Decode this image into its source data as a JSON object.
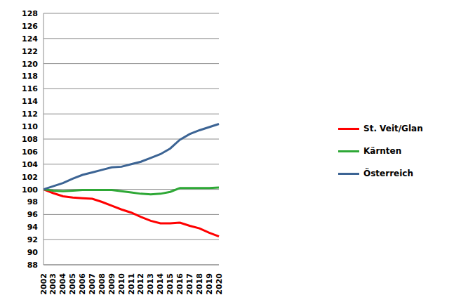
{
  "chart_data": {
    "type": "line",
    "categories": [
      "2002",
      "2003",
      "2004",
      "2005",
      "2006",
      "2007",
      "2008",
      "2009",
      "2010",
      "2011",
      "2012",
      "2013",
      "2014",
      "2015",
      "2016",
      "2017",
      "2018",
      "2019",
      "2020"
    ],
    "series": [
      {
        "name": "St. Veit/Glan",
        "color": "#ff0000",
        "values": [
          100,
          99.4,
          98.9,
          98.7,
          98.6,
          98.5,
          98.0,
          97.4,
          96.8,
          96.3,
          95.6,
          95.0,
          94.6,
          94.6,
          94.7,
          94.2,
          93.8,
          93.1,
          92.5
        ]
      },
      {
        "name": "Kärnten",
        "color": "#2ea836",
        "values": [
          100,
          99.8,
          99.7,
          99.8,
          99.9,
          99.9,
          99.9,
          99.9,
          99.7,
          99.5,
          99.3,
          99.2,
          99.3,
          99.6,
          100.2,
          100.2,
          100.2,
          100.2,
          100.3
        ]
      },
      {
        "name": "Österreich",
        "color": "#3c6494",
        "values": [
          100,
          100.5,
          101.0,
          101.7,
          102.3,
          102.7,
          103.1,
          103.5,
          103.6,
          104.0,
          104.4,
          105.0,
          105.6,
          106.5,
          107.9,
          108.8,
          109.4,
          109.9,
          110.4
        ]
      }
    ],
    "ylim": [
      88,
      128
    ],
    "yticks": [
      88,
      90,
      92,
      94,
      96,
      98,
      100,
      102,
      104,
      106,
      108,
      110,
      112,
      114,
      116,
      118,
      120,
      122,
      124,
      126,
      128
    ],
    "grid": true,
    "legend": "right"
  }
}
